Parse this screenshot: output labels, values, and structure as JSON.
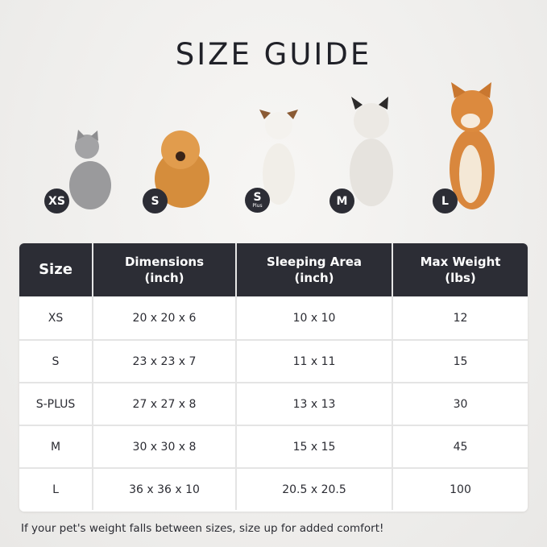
{
  "title": "SIZE GUIDE",
  "pets": [
    {
      "badge": "XS",
      "sub": "",
      "animal": "cat",
      "color": "#9a9a9c"
    },
    {
      "badge": "S",
      "sub": "",
      "animal": "dog",
      "color": "#d58d3c"
    },
    {
      "badge": "S",
      "sub": "Plus",
      "animal": "dog",
      "color": "#f1eee8"
    },
    {
      "badge": "M",
      "sub": "",
      "animal": "dog",
      "color": "#e6e3de"
    },
    {
      "badge": "L",
      "sub": "",
      "animal": "dog",
      "color": "#d9873d"
    }
  ],
  "table": {
    "headers": [
      "Size",
      "Dimensions\n(inch)",
      "Sleeping Area\n(inch)",
      "Max Weight\n(lbs)"
    ],
    "rows": [
      [
        "XS",
        "20 x 20 x 6",
        "10 x 10",
        "12"
      ],
      [
        "S",
        "23 x 23 x 7",
        "11 x 11",
        "15"
      ],
      [
        "S-PLUS",
        "27 x 27 x 8",
        "13 x 13",
        "30"
      ],
      [
        "M",
        "30 x 30 x 8",
        "15 x 15",
        "45"
      ],
      [
        "L",
        "36 x 36 x 10",
        "20.5 x 20.5",
        "100"
      ]
    ]
  },
  "note": "If your pet's weight falls between sizes, size up for added comfort!",
  "colors": {
    "header_bg": "#2c2d35",
    "badge_bg": "#2c2d35"
  }
}
